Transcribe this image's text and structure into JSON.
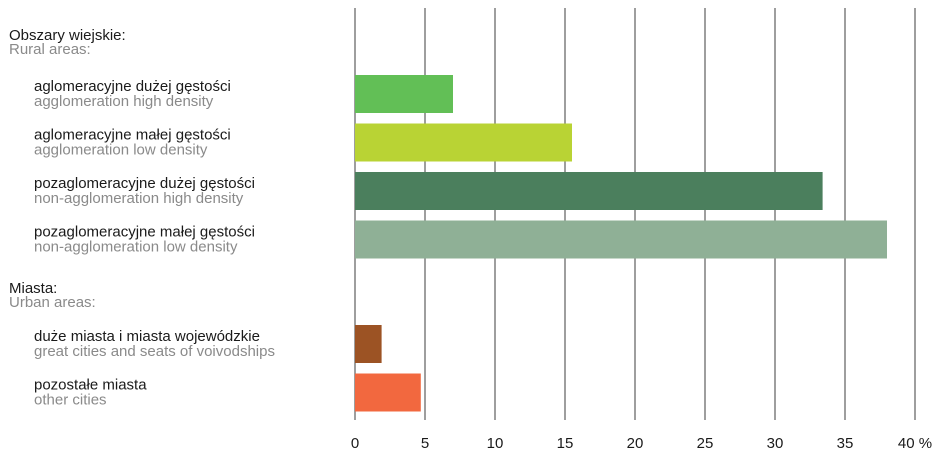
{
  "chart_data": {
    "type": "bar",
    "orientation": "horizontal",
    "xlim": [
      0,
      40
    ],
    "x_ticks": [
      "0",
      "5",
      "10",
      "15",
      "20",
      "25",
      "30",
      "35",
      "40 %"
    ],
    "grid": true,
    "groups": [
      {
        "title_pl": "Obszary wiejskie:",
        "title_en": "Rural areas:",
        "categories": [
          {
            "label_pl": "aglomeracyjne dużej gęstości",
            "label_en": "agglomeration high density",
            "value": 7.0,
            "color": "#62bf56"
          },
          {
            "label_pl": "aglomeracyjne małej gęstości",
            "label_en": "agglomeration low density",
            "value": 15.5,
            "color": "#b9d334"
          },
          {
            "label_pl": "pozaglomeracyjne dużej gęstości",
            "label_en": "non-agglomeration high density",
            "value": 33.4,
            "color": "#4b7f5d"
          },
          {
            "label_pl": "pozaglomeracyjne małej gęstości",
            "label_en": "non-agglomeration low density",
            "value": 38.0,
            "color": "#8fb096"
          }
        ]
      },
      {
        "title_pl": "Miasta:",
        "title_en": "Urban areas:",
        "categories": [
          {
            "label_pl": "duże miasta i miasta wojewódzkie",
            "label_en": "great cities and seats of voivodships",
            "value": 1.9,
            "color": "#9c5324"
          },
          {
            "label_pl": "pozostałe miasta",
            "label_en": "other cities",
            "value": 4.7,
            "color": "#f2683f"
          }
        ]
      }
    ]
  }
}
